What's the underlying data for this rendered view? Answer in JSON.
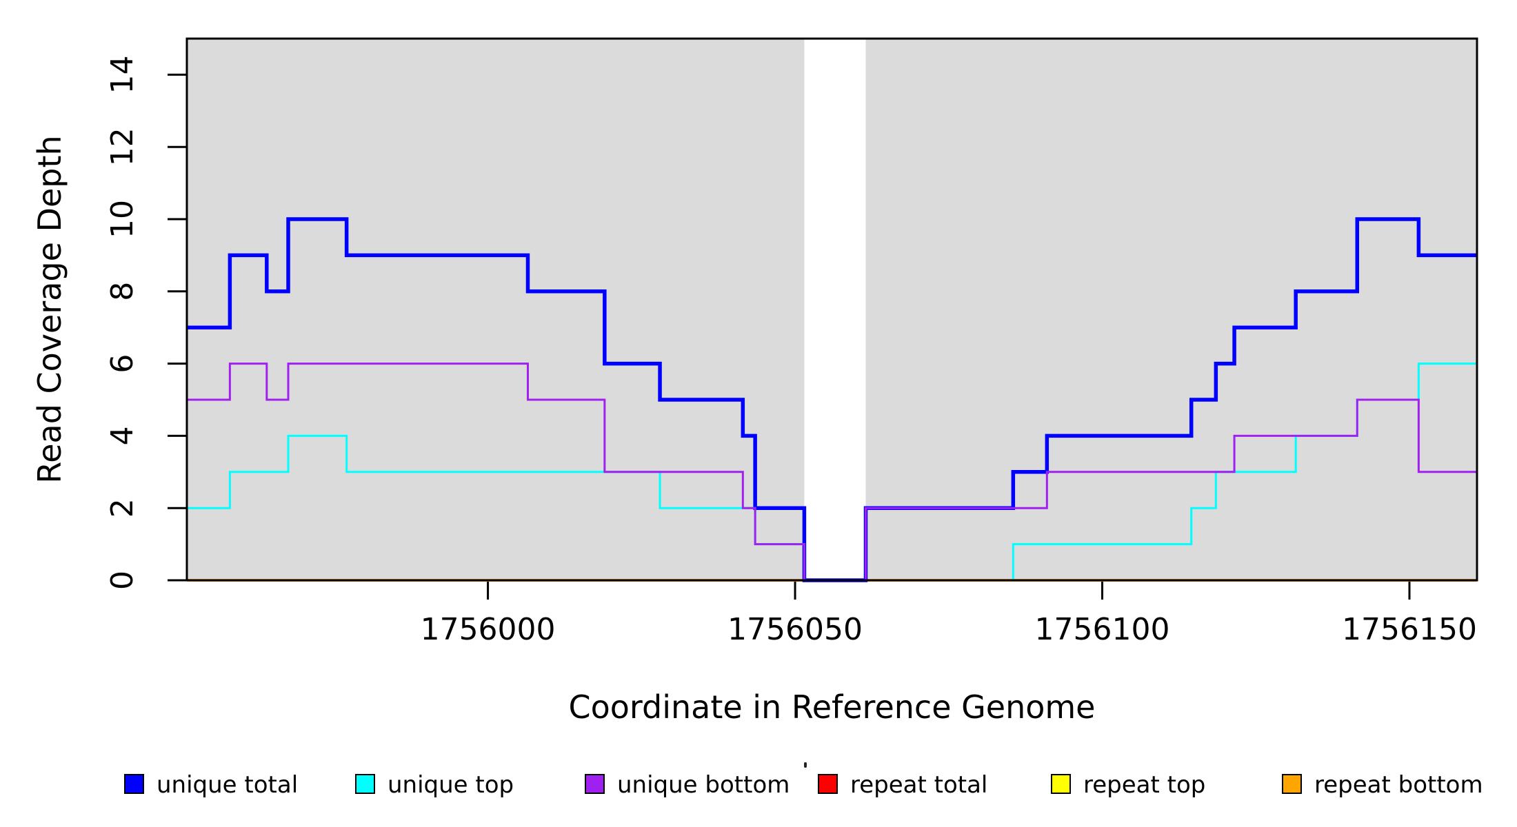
{
  "figure": {
    "xlabel": "Coordinate in Reference Genome",
    "ylabel": "Read Coverage Depth",
    "background_color": "#ffffff",
    "panel_band_color": "#DBDBDB",
    "axis_color": "#000000"
  },
  "chart_data": {
    "type": "line",
    "step_mode": "post",
    "title": "",
    "xlabel": "Coordinate in Reference Genome",
    "ylabel": "Read Coverage Depth",
    "xlim": [
      1755951,
      1756161
    ],
    "ylim": [
      0,
      15
    ],
    "x_ticks": [
      1756000,
      1756050,
      1756100,
      1756150
    ],
    "y_ticks": [
      0,
      2,
      4,
      6,
      8,
      10,
      12,
      14
    ],
    "grid": false,
    "legend_position": "bottom",
    "background_bands": [
      {
        "name": "shaded-left",
        "from": 1755951,
        "to": 1756051.5,
        "color": "#DBDBDB"
      },
      {
        "name": "unshaded-gap",
        "from": 1756051.5,
        "to": 1756061.5,
        "color": "#ffffff"
      },
      {
        "name": "shaded-right",
        "from": 1756061.5,
        "to": 1756161,
        "color": "#DBDBDB"
      }
    ],
    "series": [
      {
        "name": "repeat total",
        "color": "#FF0000",
        "line_width": 3,
        "points": [
          [
            1755951,
            0
          ]
        ]
      },
      {
        "name": "repeat top",
        "color": "#FFFF00",
        "line_width": 3,
        "points": [
          [
            1755951,
            0
          ]
        ]
      },
      {
        "name": "repeat bottom",
        "color": "#FFA500",
        "line_width": 4,
        "points": [
          [
            1755951,
            0
          ]
        ]
      },
      {
        "name": "unique total",
        "color": "#0000FF",
        "line_width": 5.5,
        "points": [
          [
            1755951,
            7
          ],
          [
            1755958,
            9
          ],
          [
            1755964,
            8
          ],
          [
            1755967.5,
            10
          ],
          [
            1755977,
            9
          ],
          [
            1756006.5,
            8
          ],
          [
            1756019,
            6
          ],
          [
            1756028,
            5
          ],
          [
            1756041.5,
            4
          ],
          [
            1756043.5,
            2
          ],
          [
            1756051.5,
            0
          ],
          [
            1756061.5,
            2
          ],
          [
            1756085.5,
            3
          ],
          [
            1756091,
            4
          ],
          [
            1756114.5,
            5
          ],
          [
            1756118.5,
            6
          ],
          [
            1756121.5,
            7
          ],
          [
            1756131.5,
            8
          ],
          [
            1756141.5,
            10
          ],
          [
            1756151.5,
            9
          ]
        ]
      },
      {
        "name": "unique top",
        "color": "#00FFFF",
        "line_width": 3,
        "points": [
          [
            1755951,
            2
          ],
          [
            1755958,
            3
          ],
          [
            1755967.5,
            4
          ],
          [
            1755977,
            3
          ],
          [
            1756028,
            2
          ],
          [
            1756043.5,
            1
          ],
          [
            1756051.5,
            0
          ],
          [
            1756085.5,
            1
          ],
          [
            1756114.5,
            2
          ],
          [
            1756118.5,
            3
          ],
          [
            1756131.5,
            4
          ],
          [
            1756141.5,
            5
          ],
          [
            1756151.5,
            6
          ]
        ]
      },
      {
        "name": "unique bottom",
        "color": "#A020F0",
        "line_width": 3,
        "points": [
          [
            1755951,
            5
          ],
          [
            1755958,
            6
          ],
          [
            1755964,
            5
          ],
          [
            1755967.5,
            6
          ],
          [
            1756006.5,
            5
          ],
          [
            1756019,
            3
          ],
          [
            1756041.5,
            2
          ],
          [
            1756043.5,
            1
          ],
          [
            1756051.5,
            0
          ],
          [
            1756061.5,
            2
          ],
          [
            1756091,
            3
          ],
          [
            1756121.5,
            4
          ],
          [
            1756141.5,
            5
          ],
          [
            1756151.5,
            3
          ]
        ]
      }
    ]
  },
  "legend": {
    "items": [
      {
        "label": "unique total",
        "color": "#0000FF"
      },
      {
        "label": "unique top",
        "color": "#00FFFF"
      },
      {
        "label": "unique bottom",
        "color": "#A020F0"
      },
      {
        "label": "repeat total",
        "color": "#FF0000"
      },
      {
        "label": "repeat top",
        "color": "#FFFF00"
      },
      {
        "label": "repeat bottom",
        "color": "#FFA500"
      }
    ]
  }
}
